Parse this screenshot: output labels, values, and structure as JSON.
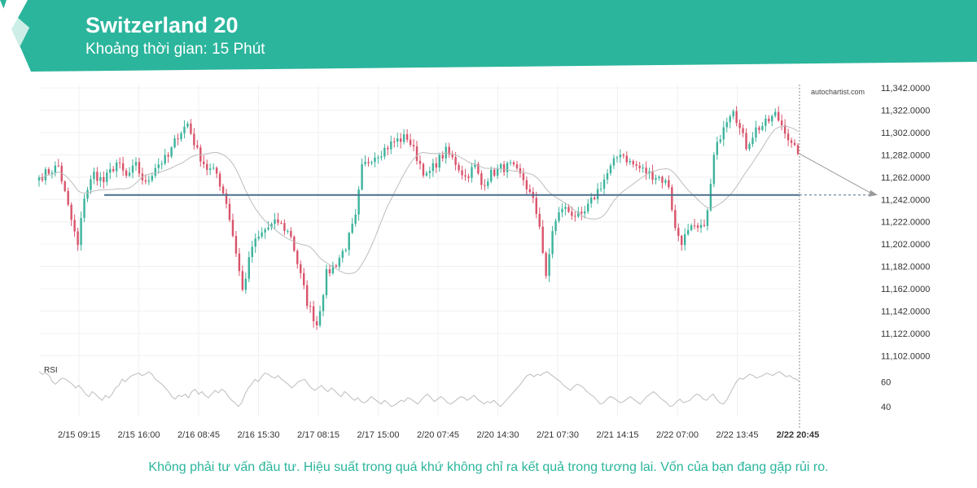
{
  "header": {
    "title": "Switzerland 20",
    "subtitle": "Khoảng thời gian: 15 Phút",
    "logo_icon": "autochartist-logo-icon"
  },
  "colors": {
    "brand": "#2bb59c",
    "candle_up": "#3cb39d",
    "candle_down": "#d9536a",
    "support_line": "#4a6f8c",
    "moving_average": "#bdbdbd",
    "rsi_line": "#bdbdbd",
    "grid": "#f0f0f0"
  },
  "watermark": "autochartist.com",
  "chart_data": {
    "type": "candlestick",
    "x_tick_labels": [
      "2/15 09:15",
      "2/15 16:00",
      "2/16 08:45",
      "2/16 15:30",
      "2/17 08:15",
      "2/17 15:00",
      "2/20 07:45",
      "2/20 14:30",
      "2/21 07:30",
      "2/21 14:15",
      "2/22 07:00",
      "2/22 13:45",
      "2/22 20:45"
    ],
    "y_tick_labels": [
      "11,342.0000",
      "11,322.0000",
      "11,302.0000",
      "11,282.0000",
      "11,262.0000",
      "11,242.0000",
      "11,222.0000",
      "11,202.0000",
      "11,182.0000",
      "11,162.0000",
      "11,142.0000",
      "11,122.0000",
      "11,102.0000"
    ],
    "y_ticks": [
      11342,
      11322,
      11302,
      11282,
      11262,
      11242,
      11222,
      11202,
      11182,
      11162,
      11142,
      11122,
      11102
    ],
    "ylim": [
      11100,
      11345
    ],
    "support_level": 11246,
    "last_close": 11283,
    "projection_target": 11246,
    "price_path": [
      [
        0,
        11262
      ],
      [
        6,
        11272
      ],
      [
        9,
        11235
      ],
      [
        12,
        11200
      ],
      [
        14,
        11245
      ],
      [
        17,
        11265
      ],
      [
        20,
        11258
      ],
      [
        24,
        11275
      ],
      [
        27,
        11262
      ],
      [
        30,
        11272
      ],
      [
        33,
        11255
      ],
      [
        36,
        11272
      ],
      [
        40,
        11280
      ],
      [
        43,
        11300
      ],
      [
        46,
        11310
      ],
      [
        49,
        11285
      ],
      [
        52,
        11270
      ],
      [
        55,
        11265
      ],
      [
        58,
        11240
      ],
      [
        61,
        11195
      ],
      [
        63,
        11160
      ],
      [
        66,
        11200
      ],
      [
        70,
        11215
      ],
      [
        74,
        11222
      ],
      [
        78,
        11210
      ],
      [
        80,
        11185
      ],
      [
        83,
        11150
      ],
      [
        86,
        11130
      ],
      [
        89,
        11175
      ],
      [
        92,
        11185
      ],
      [
        95,
        11200
      ],
      [
        98,
        11225
      ],
      [
        100,
        11270
      ],
      [
        103,
        11280
      ],
      [
        106,
        11285
      ],
      [
        110,
        11294
      ],
      [
        114,
        11298
      ],
      [
        117,
        11280
      ],
      [
        120,
        11262
      ],
      [
        123,
        11275
      ],
      [
        126,
        11285
      ],
      [
        129,
        11275
      ],
      [
        132,
        11262
      ],
      [
        135,
        11272
      ],
      [
        137,
        11255
      ],
      [
        140,
        11265
      ],
      [
        143,
        11270
      ],
      [
        146,
        11272
      ],
      [
        150,
        11260
      ],
      [
        153,
        11240
      ],
      [
        155,
        11220
      ],
      [
        157,
        11170
      ],
      [
        159,
        11215
      ],
      [
        162,
        11235
      ],
      [
        165,
        11230
      ],
      [
        168,
        11225
      ],
      [
        171,
        11240
      ],
      [
        174,
        11255
      ],
      [
        177,
        11270
      ],
      [
        180,
        11285
      ],
      [
        183,
        11275
      ],
      [
        186,
        11270
      ],
      [
        189,
        11265
      ],
      [
        192,
        11262
      ],
      [
        195,
        11255
      ],
      [
        197,
        11215
      ],
      [
        199,
        11205
      ],
      [
        202,
        11215
      ],
      [
        205,
        11215
      ],
      [
        207,
        11230
      ],
      [
        209,
        11280
      ],
      [
        212,
        11310
      ],
      [
        215,
        11325
      ],
      [
        217,
        11305
      ],
      [
        219,
        11290
      ],
      [
        222,
        11305
      ],
      [
        225,
        11310
      ],
      [
        228,
        11318
      ],
      [
        231,
        11305
      ],
      [
        233,
        11290
      ],
      [
        235,
        11283
      ]
    ],
    "rsi": {
      "label": "RSI",
      "y_tick_labels": [
        "60",
        "40"
      ],
      "y_ticks": [
        60,
        40
      ],
      "ylim": [
        32,
        74
      ],
      "values": [
        68,
        66,
        67,
        65,
        60,
        58,
        61,
        63,
        62,
        60,
        58,
        55,
        57,
        54,
        50,
        48,
        52,
        50,
        47,
        45,
        49,
        47,
        50,
        55,
        57,
        62,
        60,
        63,
        65,
        66,
        67,
        65,
        66,
        68,
        66,
        62,
        60,
        58,
        55,
        52,
        48,
        46,
        49,
        48,
        50,
        47,
        52,
        54,
        50,
        52,
        49,
        47,
        50,
        53,
        51,
        54,
        52,
        48,
        45,
        43,
        40,
        43,
        50,
        55,
        58,
        62,
        60,
        64,
        67,
        66,
        64,
        63,
        65,
        62,
        60,
        58,
        55,
        57,
        60,
        61,
        62,
        58,
        55,
        53,
        55,
        57,
        54,
        52,
        55,
        53,
        50,
        48,
        52,
        50,
        47,
        45,
        47,
        44,
        43,
        45,
        48,
        46,
        44,
        42,
        45,
        43,
        40,
        41,
        43,
        45,
        44,
        47,
        46,
        44,
        42,
        45,
        48,
        50,
        47,
        44,
        46,
        48,
        46,
        43,
        42,
        44,
        46,
        48,
        47,
        45,
        47,
        49,
        46,
        44,
        42,
        44,
        43,
        45,
        42,
        40,
        43,
        46,
        49,
        52,
        55,
        58,
        62,
        65,
        66,
        64,
        66,
        65,
        67,
        68,
        66,
        64,
        62,
        60,
        57,
        55,
        53,
        56,
        58,
        57,
        55,
        52,
        50,
        48,
        45,
        42,
        43,
        46,
        48,
        47,
        45,
        43,
        44,
        46,
        48,
        46,
        44,
        42,
        45,
        48,
        50,
        52,
        50,
        47,
        45,
        43,
        40,
        41,
        44,
        46,
        43,
        44,
        45,
        48,
        50,
        49,
        46,
        45,
        48,
        50,
        46,
        43,
        42,
        45,
        50,
        55,
        60,
        63,
        62,
        64,
        66,
        65,
        63,
        64,
        65,
        67,
        66,
        65,
        67,
        68,
        66,
        64,
        65,
        63,
        62,
        60
      ]
    }
  },
  "footer": {
    "disclaimer": "Không phải tư vấn đầu tư. Hiệu suất trong quá khứ không chỉ ra kết quả trong tương lai. Vốn của bạn đang gặp rủi ro."
  }
}
